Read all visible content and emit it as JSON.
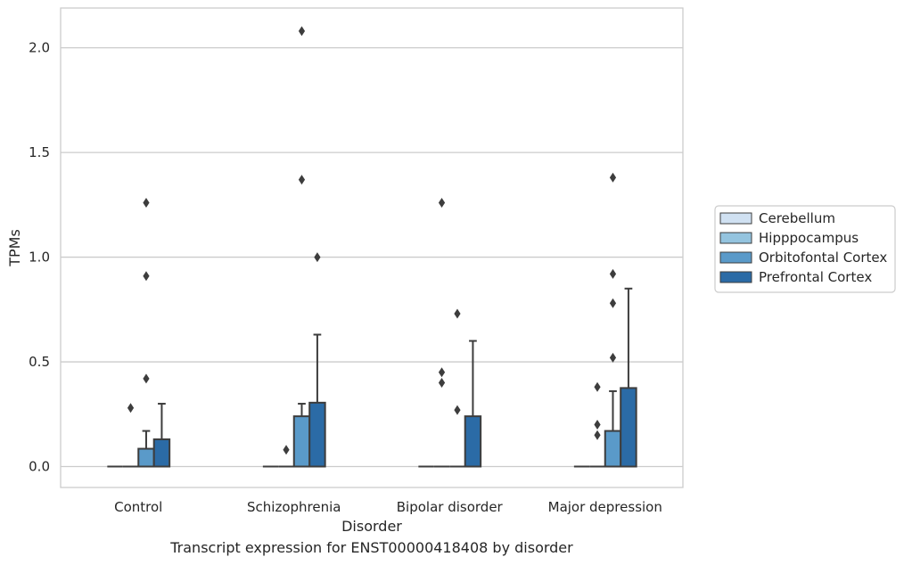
{
  "caption": "Transcript expression for ENST00000418408 by disorder",
  "chart_data": {
    "type": "box",
    "xlabel": "Disorder",
    "ylabel": "TPMs",
    "ylim": [
      -0.1,
      2.19
    ],
    "yticks": [
      0.0,
      0.5,
      1.0,
      1.5,
      2.0
    ],
    "ytick_labels": [
      "0.0",
      "0.5",
      "1.0",
      "1.5",
      "2.0"
    ],
    "grid": "horizontal",
    "legend_position": "right",
    "categories": [
      "Control",
      "Schizophrenia",
      "Bipolar disorder",
      "Major depression"
    ],
    "series": [
      {
        "name": "Cerebellum",
        "color": "#d0e1f2",
        "boxes": [
          {
            "q1": 0,
            "median": 0,
            "q3": 0,
            "whisker_low": 0,
            "whisker_high": 0,
            "outliers": []
          },
          {
            "q1": 0,
            "median": 0,
            "q3": 0,
            "whisker_low": 0,
            "whisker_high": 0,
            "outliers": []
          },
          {
            "q1": 0,
            "median": 0,
            "q3": 0,
            "whisker_low": 0,
            "whisker_high": 0,
            "outliers": []
          },
          {
            "q1": 0,
            "median": 0,
            "q3": 0,
            "whisker_low": 0,
            "whisker_high": 0,
            "outliers": []
          }
        ]
      },
      {
        "name": "Hipppocampus",
        "color": "#94c4df",
        "boxes": [
          {
            "q1": 0,
            "median": 0,
            "q3": 0,
            "whisker_low": 0,
            "whisker_high": 0,
            "outliers": [
              0.28
            ]
          },
          {
            "q1": 0,
            "median": 0,
            "q3": 0,
            "whisker_low": 0,
            "whisker_high": 0,
            "outliers": [
              0.08
            ]
          },
          {
            "q1": 0,
            "median": 0,
            "q3": 0,
            "whisker_low": 0,
            "whisker_high": 0,
            "outliers": [
              0.4,
              0.45,
              1.26
            ]
          },
          {
            "q1": 0,
            "median": 0,
            "q3": 0,
            "whisker_low": 0,
            "whisker_high": 0,
            "outliers": [
              0.15,
              0.2,
              0.38
            ]
          }
        ]
      },
      {
        "name": "Orbitofontal Cortex",
        "color": "#5a9ac9",
        "boxes": [
          {
            "q1": 0,
            "median": 0,
            "q3": 0.085,
            "whisker_low": 0,
            "whisker_high": 0.17,
            "outliers": [
              0.42,
              0.91,
              1.26
            ]
          },
          {
            "q1": 0,
            "median": 0,
            "q3": 0.24,
            "whisker_low": 0,
            "whisker_high": 0.3,
            "outliers": [
              1.37,
              2.08
            ]
          },
          {
            "q1": 0,
            "median": 0,
            "q3": 0,
            "whisker_low": 0,
            "whisker_high": 0,
            "outliers": [
              0.27,
              0.73
            ]
          },
          {
            "q1": 0,
            "median": 0,
            "q3": 0.17,
            "whisker_low": 0,
            "whisker_high": 0.36,
            "outliers": [
              0.52,
              0.78,
              0.92,
              1.38
            ]
          }
        ]
      },
      {
        "name": "Prefrontal Cortex",
        "color": "#2b6ba6",
        "boxes": [
          {
            "q1": 0,
            "median": 0,
            "q3": 0.13,
            "whisker_low": 0,
            "whisker_high": 0.3,
            "outliers": []
          },
          {
            "q1": 0,
            "median": 0,
            "q3": 0.305,
            "whisker_low": 0,
            "whisker_high": 0.63,
            "outliers": [
              1.0
            ]
          },
          {
            "q1": 0,
            "median": 0,
            "q3": 0.24,
            "whisker_low": 0,
            "whisker_high": 0.6,
            "outliers": []
          },
          {
            "q1": 0,
            "median": 0,
            "q3": 0.375,
            "whisker_low": 0,
            "whisker_high": 0.85,
            "outliers": []
          }
        ]
      }
    ]
  }
}
